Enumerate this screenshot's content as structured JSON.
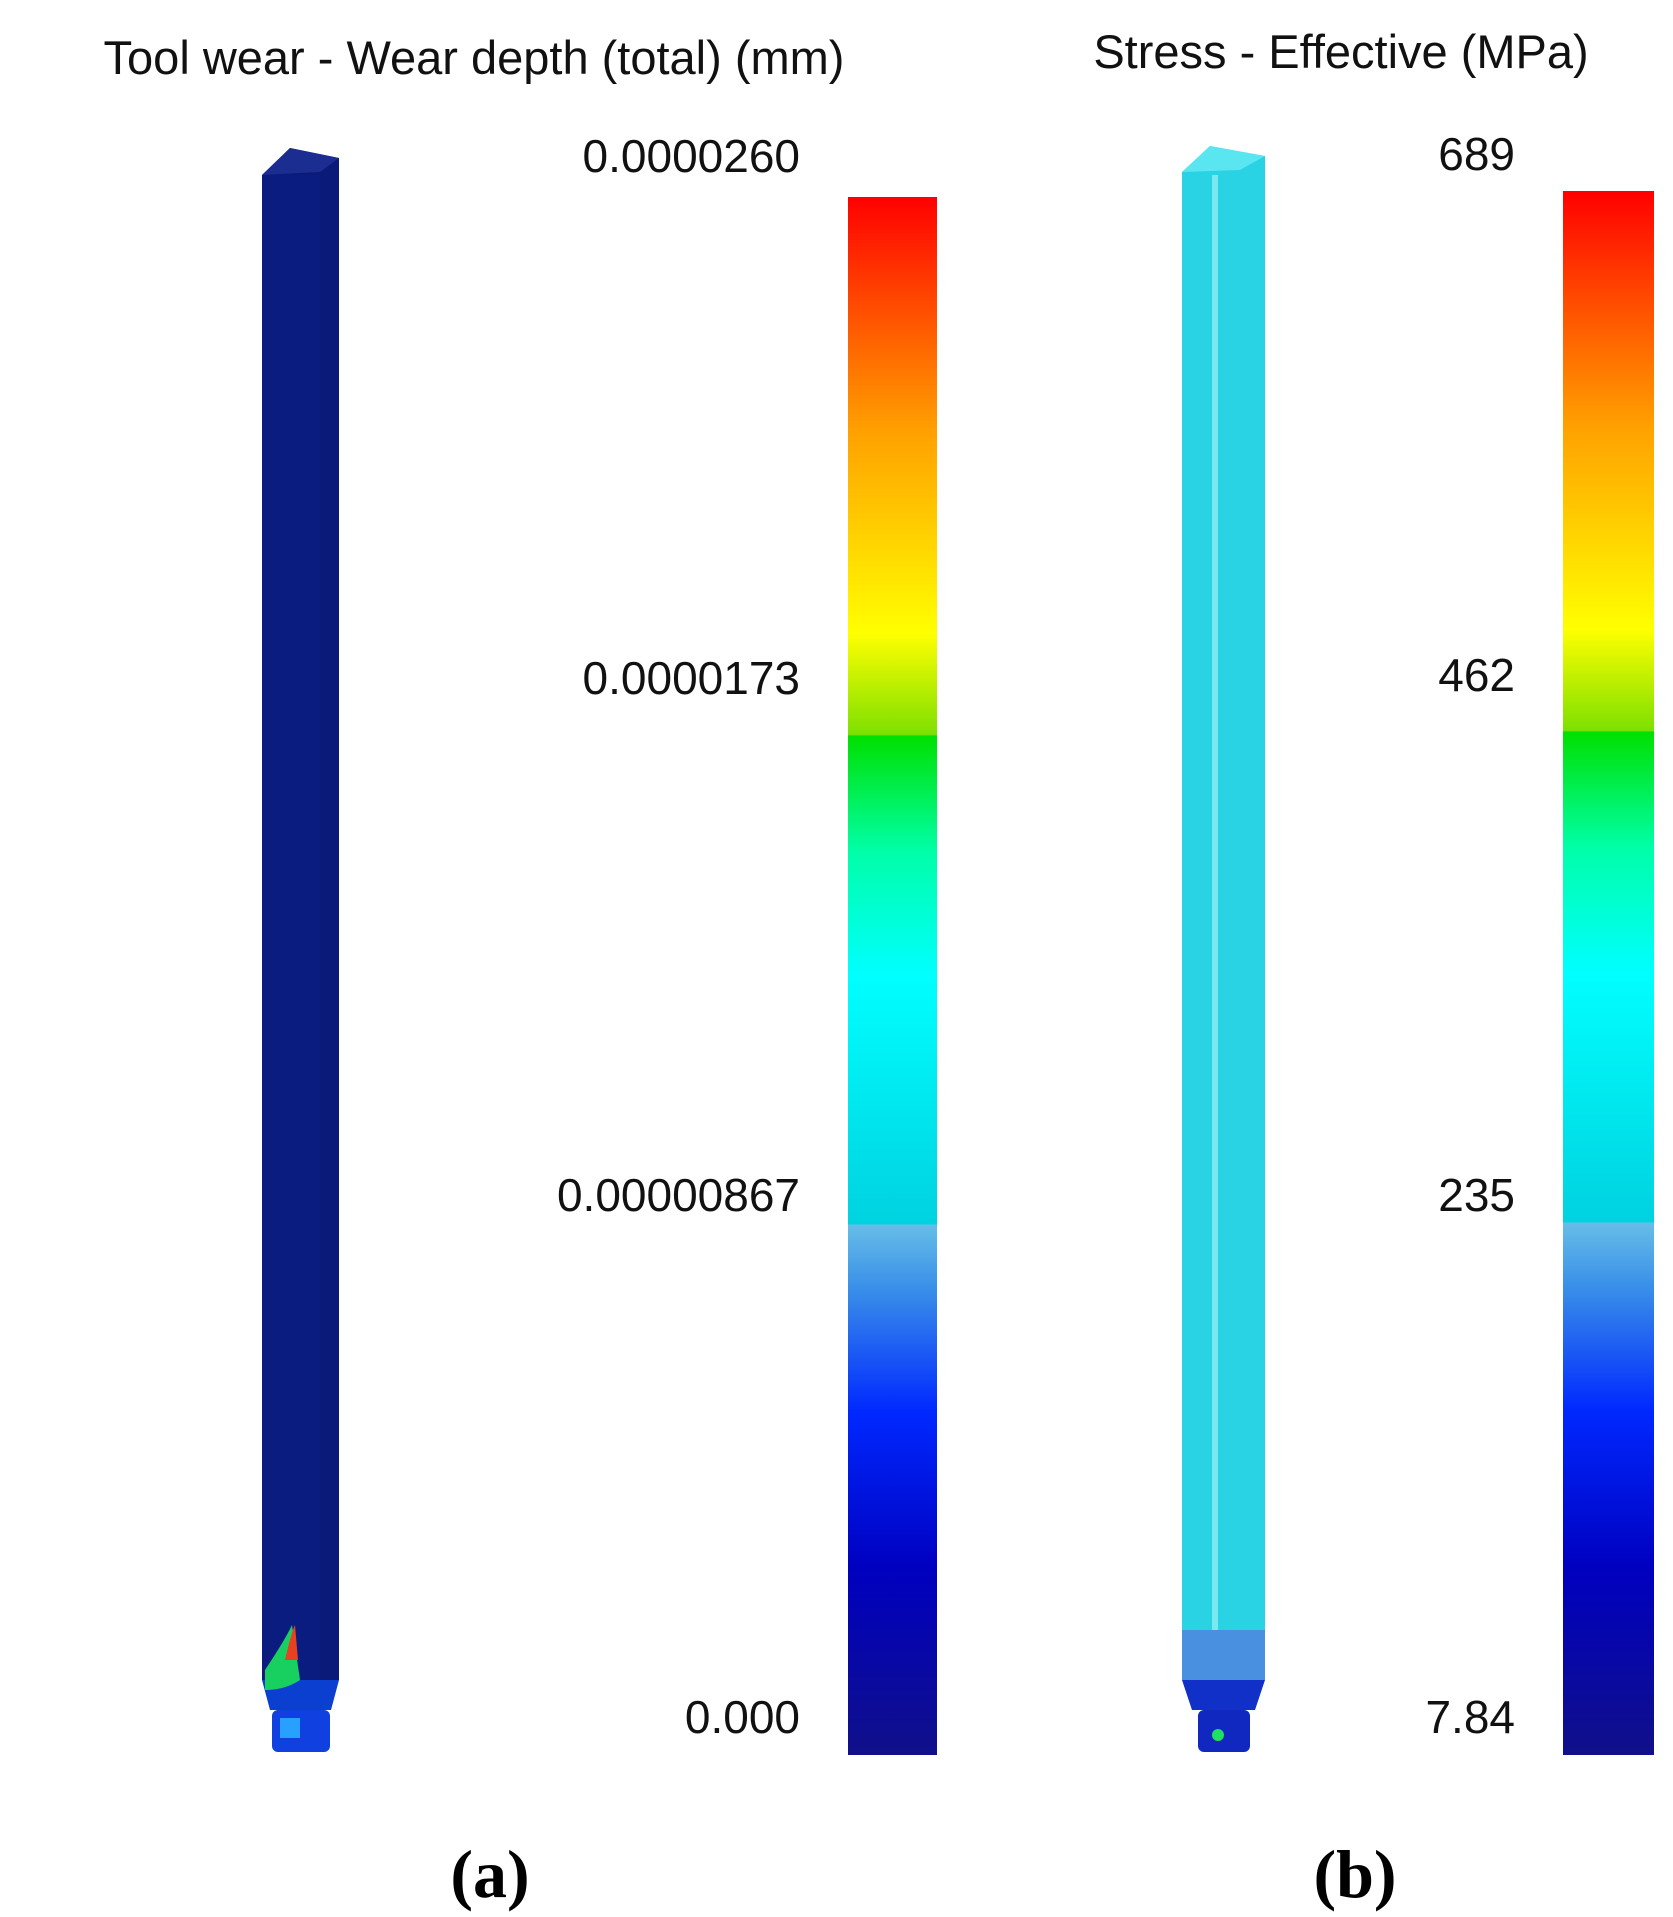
{
  "panels": [
    {
      "title": "Tool wear - Wear depth (total) (mm)",
      "scale_labels": [
        "0.0000260",
        "0.0000173",
        "0.00000867",
        "0.000"
      ],
      "label": "(a)"
    },
    {
      "title": "Stress - Effective (MPa)",
      "scale_labels": [
        "689",
        "462",
        "235",
        "7.84"
      ],
      "label": "(b)"
    }
  ]
}
